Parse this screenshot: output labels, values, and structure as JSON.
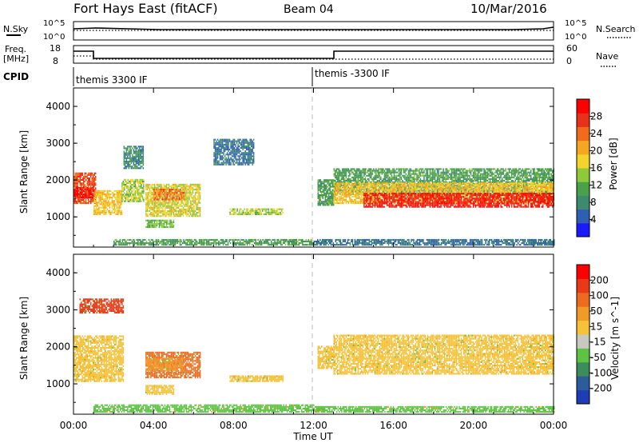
{
  "header": {
    "station": "Fort Hays East (fitACF)",
    "beam": "Beam 04",
    "date": "10/Mar/2016"
  },
  "strips": {
    "nsky_label": "N.Sky",
    "nsky_ticks": [
      "10^5",
      "10^0"
    ],
    "nsearch_label": "N.Search",
    "nsearch_ticks": [
      "10^5",
      "10^0"
    ],
    "freq_label_1": "Freq.",
    "freq_label_2": "[MHz]",
    "freq_ticks": [
      "18",
      "8"
    ],
    "nave_label": "Nave",
    "nave_ticks": [
      "60",
      "0"
    ],
    "cpid_label": "CPID",
    "cpid_segments": [
      "themis 3300 IF",
      "themis -3300 IF"
    ]
  },
  "axes": {
    "xlabel": "Time UT",
    "x_ticks": [
      "00:00",
      "04:00",
      "08:00",
      "12:00",
      "16:00",
      "20:00",
      "00:00"
    ],
    "ylabel": "Slant Range [km]",
    "y_ticks": [
      "1000",
      "2000",
      "3000",
      "4000"
    ]
  },
  "colorbars": {
    "power": {
      "label": "Power [dB]",
      "ticks": [
        "4",
        "8",
        "12",
        "16",
        "20",
        "24",
        "28"
      ],
      "colors": [
        "#1a1aff",
        "#2f5fb5",
        "#3d8a6e",
        "#4aa14a",
        "#8fc93a",
        "#f2d52b",
        "#f5a623",
        "#f26a1b",
        "#e8301a",
        "#ff0000"
      ]
    },
    "velocity": {
      "label": "Velocity [m s^-1]",
      "ticks": [
        "200",
        "100",
        "50",
        "15",
        "-15",
        "-50",
        "-100",
        "-200"
      ],
      "colors": [
        "#1e3cb4",
        "#2c5c9c",
        "#3c8c5c",
        "#5cc442",
        "#c8c8c0",
        "#f5c23a",
        "#f09a2a",
        "#ee6a1e",
        "#e83a16",
        "#ff0000"
      ]
    }
  },
  "chart_data": [
    {
      "type": "heatmap",
      "name": "power",
      "xlabel": "Time UT",
      "ylabel": "Slant Range [km]",
      "xlim": [
        0,
        24
      ],
      "ylim": [
        180,
        4500
      ],
      "colorbar_label": "Power [dB]",
      "colorbar_range": [
        0,
        30
      ],
      "regions": [
        {
          "t0": 0.0,
          "t1": 1.1,
          "r0": 1350,
          "r1": 2200,
          "level": 24
        },
        {
          "t0": 0.0,
          "t1": 1.0,
          "r0": 1500,
          "r1": 1800,
          "level": 28
        },
        {
          "t0": 1.0,
          "t1": 2.4,
          "r0": 1050,
          "r1": 1700,
          "level": 18
        },
        {
          "t0": 2.4,
          "t1": 3.5,
          "r0": 1400,
          "r1": 2000,
          "level": 14
        },
        {
          "t0": 2.5,
          "t1": 3.5,
          "r0": 2300,
          "r1": 2900,
          "level": 8
        },
        {
          "t0": 3.6,
          "t1": 6.3,
          "r0": 1000,
          "r1": 1900,
          "level": 16
        },
        {
          "t0": 4.0,
          "t1": 5.5,
          "r0": 1450,
          "r1": 1750,
          "level": 22
        },
        {
          "t0": 3.6,
          "t1": 5.0,
          "r0": 700,
          "r1": 900,
          "level": 12
        },
        {
          "t0": 7.8,
          "t1": 10.5,
          "r0": 1050,
          "r1": 1200,
          "level": 14
        },
        {
          "t0": 7.0,
          "t1": 9.0,
          "r0": 2400,
          "r1": 3100,
          "level": 6
        },
        {
          "t0": 2.0,
          "t1": 12.0,
          "r0": 220,
          "r1": 400,
          "level": 10
        },
        {
          "t0": 12.2,
          "t1": 13.0,
          "r0": 1300,
          "r1": 2000,
          "level": 10
        },
        {
          "t0": 13.0,
          "t1": 24.0,
          "r0": 1600,
          "r1": 2300,
          "level": 10
        },
        {
          "t0": 13.0,
          "t1": 24.0,
          "r0": 1350,
          "r1": 1900,
          "level": 18
        },
        {
          "t0": 14.5,
          "t1": 24.0,
          "r0": 1250,
          "r1": 1650,
          "level": 27
        },
        {
          "t0": 12.0,
          "t1": 24.0,
          "r0": 220,
          "r1": 400,
          "level": 6
        }
      ]
    },
    {
      "type": "heatmap",
      "name": "velocity",
      "xlabel": "Time UT",
      "ylabel": "Slant Range [km]",
      "xlim": [
        0,
        24
      ],
      "ylim": [
        180,
        4500
      ],
      "colorbar_label": "Velocity [m s^-1]",
      "colorbar_range": [
        -250,
        250
      ],
      "regions": [
        {
          "t0": 0.0,
          "t1": 2.5,
          "r0": 1050,
          "r1": 2300,
          "level": 0
        },
        {
          "t0": 3.6,
          "t1": 6.3,
          "r0": 1150,
          "r1": 1850,
          "level": 120
        },
        {
          "t0": 3.6,
          "t1": 5.5,
          "r0": 1350,
          "r1": 1700,
          "level": 60
        },
        {
          "t0": 3.6,
          "t1": 5.0,
          "r0": 700,
          "r1": 950,
          "level": 0
        },
        {
          "t0": 7.8,
          "t1": 10.5,
          "r0": 1050,
          "r1": 1200,
          "level": 0
        },
        {
          "t0": 0.3,
          "t1": 2.5,
          "r0": 2900,
          "r1": 3300,
          "level": 180
        },
        {
          "t0": 12.2,
          "t1": 13.0,
          "r0": 1400,
          "r1": 2000,
          "level": 30
        },
        {
          "t0": 13.0,
          "t1": 24.0,
          "r0": 1250,
          "r1": 2300,
          "level": 0
        },
        {
          "t0": 1.0,
          "t1": 12.0,
          "r0": 220,
          "r1": 420,
          "level": -80
        },
        {
          "t0": 12.0,
          "t1": 24.0,
          "r0": 220,
          "r1": 400,
          "level": -60
        }
      ]
    }
  ]
}
